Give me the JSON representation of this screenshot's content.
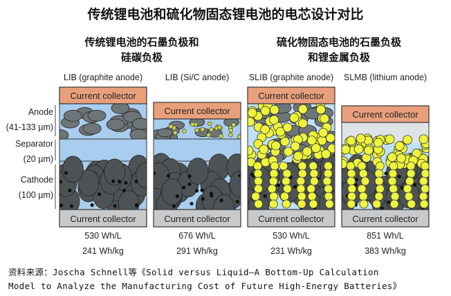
{
  "title": "传统锂电池和硫化物固态锂电池的电芯设计对比",
  "subtitles": [
    "传统锂电池的石墨负极和\n硅碳负极",
    "硫化物固态电池的石墨负极\n和锂金属负极"
  ],
  "layer_labels": {
    "anode": "Anode",
    "anode_thickness": "(41-133 µm)",
    "separator": "Separator",
    "separator_thickness": "(20 µm)",
    "cathode": "Cathode",
    "cathode_thickness": "(100 µm)"
  },
  "cells": [
    {
      "name": "LIB (graphite anode)",
      "top_collector": "Current collector",
      "bottom_collector": "Current collector",
      "volumetric": "530 Wh/L",
      "gravimetric": "241 Wh/kg"
    },
    {
      "name": "LIB (Si/C anode)",
      "top_collector": "Current collector",
      "bottom_collector": "Current collector",
      "volumetric": "676 Wh/L",
      "gravimetric": "291 Wh/kg"
    },
    {
      "name": "SLIB (graphite anode)",
      "top_collector": "Current collector",
      "bottom_collector": "Current collector",
      "volumetric": "530 Wh/L",
      "gravimetric": "231 Wh/kg"
    },
    {
      "name": "SLMB (lithium anode)",
      "top_collector": "Current collector",
      "bottom_collector": "Current collector",
      "volumetric": "851 Wh/L",
      "gravimetric": "383 Wh/kg"
    }
  ],
  "source": [
    "资料来源：Joscha Schnell等《Solid versus Liquid—A Bottom-Up Calculation",
    "Model to Analyze the Manufacturing Cost of Future High-Energy Batteries》"
  ],
  "colors": {
    "collector_top": "#e8a07c",
    "collector_bottom": "#c8c9cb",
    "electrolyte": "#a9cdef",
    "particle": "#6e7578",
    "cathode_particle": "#4d5355",
    "solid_electrolyte": "#eef53c",
    "lithium_gap": "#dfe3e6"
  }
}
